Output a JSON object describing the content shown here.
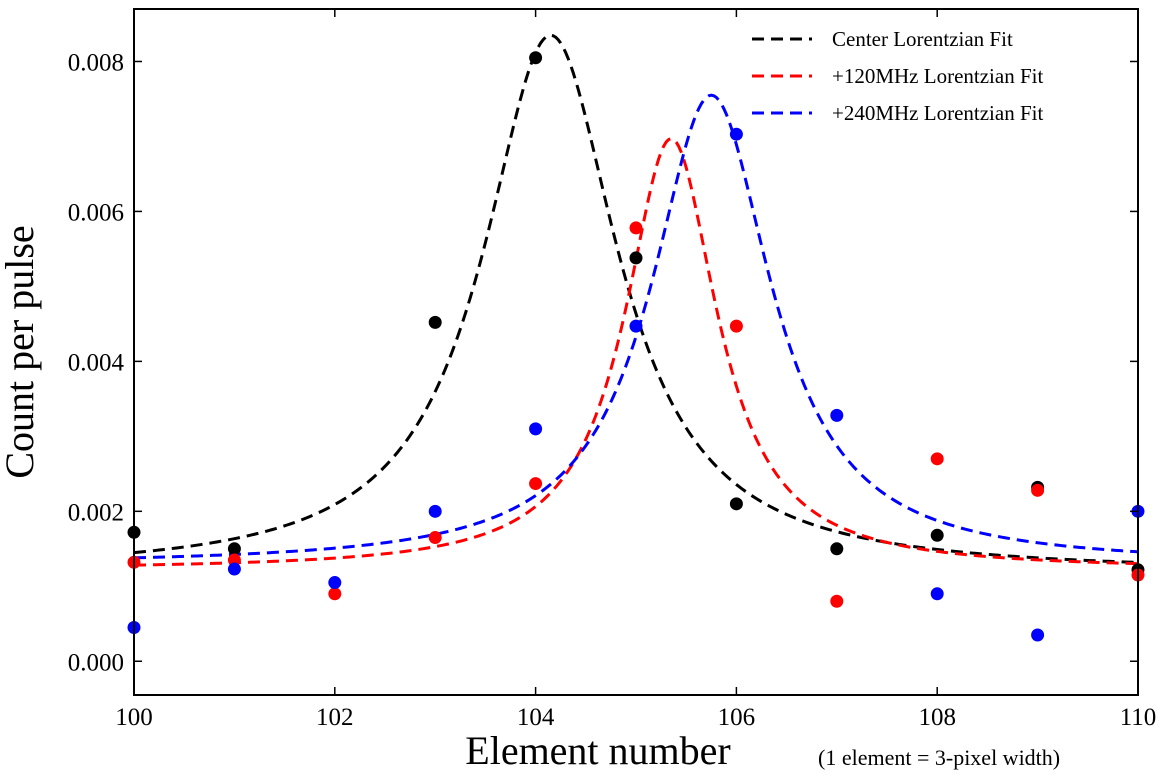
{
  "chart_data": {
    "type": "scatter",
    "title": "",
    "xlabel": "Element number",
    "ylabel": "Count per pulse",
    "xlabel_note": "(1 element = 3-pixel width)",
    "xlim": [
      100,
      110
    ],
    "ylim": [
      -0.00045,
      0.0087
    ],
    "xticks": [
      100,
      102,
      104,
      106,
      108,
      110
    ],
    "xtick_labels": [
      "100",
      "102",
      "104",
      "106",
      "108",
      "110"
    ],
    "yticks": [
      0.0,
      0.002,
      0.004,
      0.006,
      0.008
    ],
    "ytick_labels": [
      "0.000",
      "0.002",
      "0.004",
      "0.006",
      "0.008"
    ],
    "legend_position": "top-right",
    "series": [
      {
        "name": "Center",
        "color": "#000000",
        "points": [
          [
            100,
            0.00172
          ],
          [
            101,
            0.0015
          ],
          [
            103,
            0.00452
          ],
          [
            104,
            0.00805
          ],
          [
            105,
            0.00538
          ],
          [
            106,
            0.0021
          ],
          [
            107,
            0.0015
          ],
          [
            108,
            0.00168
          ],
          [
            109,
            0.00232
          ],
          [
            110,
            0.00122
          ]
        ],
        "fit": {
          "label": "Center Lorentzian Fit",
          "style": "dashed",
          "peak_x": 104.15,
          "peak_y": 0.00835,
          "hwhm": 0.82,
          "baseline": 0.00118
        }
      },
      {
        "name": "+120MHz",
        "color": "#ff0000",
        "points": [
          [
            100,
            0.00132
          ],
          [
            101,
            0.00135
          ],
          [
            102,
            0.0009
          ],
          [
            103,
            0.00165
          ],
          [
            104,
            0.00237
          ],
          [
            105,
            0.00578
          ],
          [
            106,
            0.00447
          ],
          [
            107,
            0.0008
          ],
          [
            108,
            0.0027
          ],
          [
            109,
            0.00228
          ],
          [
            110,
            0.00115
          ]
        ],
        "fit": {
          "label": "+120MHz Lorentzian Fit",
          "style": "dashed",
          "peak_x": 105.35,
          "peak_y": 0.00697,
          "hwhm": 0.56,
          "baseline": 0.00122
        }
      },
      {
        "name": "+240MHz",
        "color": "#0000ff",
        "points": [
          [
            100,
            0.00045
          ],
          [
            101,
            0.00123
          ],
          [
            102,
            0.00105
          ],
          [
            103,
            0.002
          ],
          [
            104,
            0.0031
          ],
          [
            105,
            0.00447
          ],
          [
            106,
            0.00703
          ],
          [
            107,
            0.00328
          ],
          [
            108,
            0.0009
          ],
          [
            109,
            0.00035
          ],
          [
            110,
            0.002
          ]
        ],
        "fit": {
          "label": "+240MHz Lorentzian Fit",
          "style": "dashed",
          "peak_x": 105.75,
          "peak_y": 0.00755,
          "hwhm": 0.73,
          "baseline": 0.00128
        }
      }
    ]
  }
}
